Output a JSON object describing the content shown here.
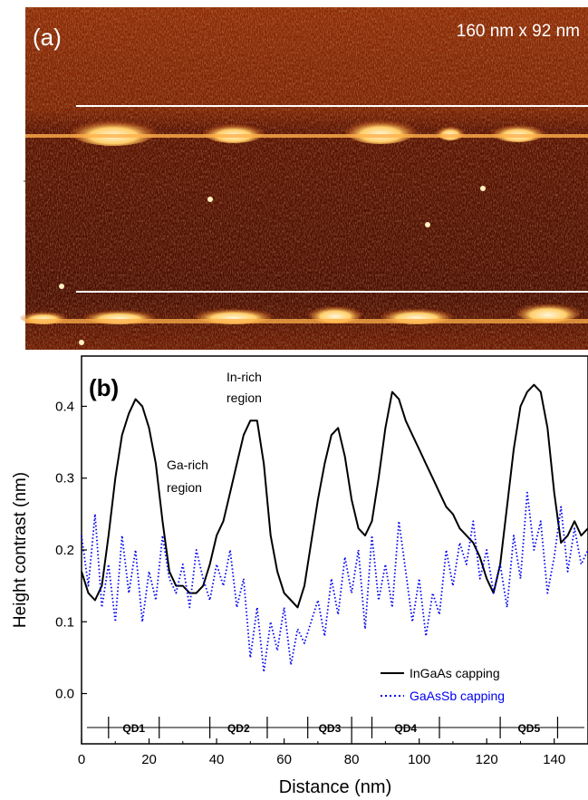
{
  "panel_a": {
    "label": "(a)",
    "scale_text": "160 nm x 92 nm",
    "colors": {
      "background_dark": "#4a0e02",
      "background_mid": "#8c2a06",
      "bright": "#ffd27a",
      "highlight": "#fff3cf",
      "guide_line": "#ffffff"
    }
  },
  "panel_b": {
    "label": "(b)",
    "annotations": {
      "in_rich": [
        "In-rich",
        "region"
      ],
      "ga_rich": [
        "Ga-rich",
        "region"
      ]
    }
  },
  "chart_data": {
    "type": "line",
    "xlabel": "Distance (nm)",
    "ylabel": "Height contrast (nm)",
    "xlim": [
      0,
      150
    ],
    "ylim": [
      -0.07,
      0.47
    ],
    "x_ticks": [
      0,
      20,
      40,
      60,
      80,
      100,
      120,
      140
    ],
    "y_ticks": [
      0.0,
      0.1,
      0.2,
      0.3,
      0.4
    ],
    "y_tick_labels": [
      "0.0",
      "0.1",
      "0.2",
      "0.3",
      "0.4"
    ],
    "legend_position": "bottom-right",
    "series": [
      {
        "name": "InGaAs capping",
        "style": "solid",
        "color": "#000000",
        "x": [
          0,
          2,
          4,
          6,
          8,
          10,
          12,
          14,
          16,
          18,
          20,
          22,
          24,
          26,
          28,
          30,
          32,
          34,
          36,
          38,
          40,
          42,
          44,
          46,
          48,
          50,
          52,
          54,
          56,
          58,
          60,
          62,
          64,
          66,
          68,
          70,
          72,
          74,
          76,
          78,
          80,
          82,
          84,
          86,
          88,
          90,
          92,
          94,
          96,
          98,
          100,
          102,
          104,
          106,
          108,
          110,
          112,
          114,
          116,
          118,
          120,
          122,
          124,
          126,
          128,
          130,
          132,
          134,
          136,
          138,
          140,
          142,
          144,
          146,
          148,
          150
        ],
        "y": [
          0.17,
          0.14,
          0.13,
          0.15,
          0.22,
          0.3,
          0.36,
          0.39,
          0.41,
          0.4,
          0.37,
          0.32,
          0.24,
          0.17,
          0.15,
          0.15,
          0.14,
          0.14,
          0.15,
          0.18,
          0.22,
          0.24,
          0.28,
          0.32,
          0.36,
          0.38,
          0.38,
          0.32,
          0.22,
          0.17,
          0.14,
          0.13,
          0.12,
          0.15,
          0.21,
          0.27,
          0.32,
          0.36,
          0.37,
          0.33,
          0.27,
          0.23,
          0.22,
          0.24,
          0.3,
          0.37,
          0.42,
          0.41,
          0.38,
          0.36,
          0.34,
          0.32,
          0.3,
          0.28,
          0.26,
          0.25,
          0.23,
          0.22,
          0.21,
          0.19,
          0.16,
          0.14,
          0.18,
          0.26,
          0.34,
          0.4,
          0.42,
          0.43,
          0.42,
          0.37,
          0.28,
          0.21,
          0.22,
          0.24,
          0.22,
          0.23
        ]
      },
      {
        "name": "GaAsSb capping",
        "style": "dotted",
        "color": "#0000ee",
        "x": [
          0,
          2,
          4,
          6,
          8,
          10,
          12,
          14,
          16,
          18,
          20,
          22,
          24,
          26,
          28,
          30,
          32,
          34,
          36,
          38,
          40,
          42,
          44,
          46,
          48,
          50,
          52,
          54,
          56,
          58,
          60,
          62,
          64,
          66,
          68,
          70,
          72,
          74,
          76,
          78,
          80,
          82,
          84,
          86,
          88,
          90,
          92,
          94,
          96,
          98,
          100,
          102,
          104,
          106,
          108,
          110,
          112,
          114,
          116,
          118,
          120,
          122,
          124,
          126,
          128,
          130,
          132,
          134,
          136,
          138,
          140,
          142,
          144,
          146,
          148,
          150
        ],
        "y": [
          0.22,
          0.15,
          0.25,
          0.12,
          0.18,
          0.1,
          0.22,
          0.14,
          0.2,
          0.1,
          0.17,
          0.13,
          0.22,
          0.16,
          0.14,
          0.18,
          0.12,
          0.2,
          0.16,
          0.13,
          0.18,
          0.15,
          0.2,
          0.12,
          0.16,
          0.05,
          0.12,
          0.03,
          0.1,
          0.06,
          0.12,
          0.04,
          0.09,
          0.07,
          0.1,
          0.13,
          0.08,
          0.16,
          0.11,
          0.19,
          0.14,
          0.2,
          0.09,
          0.22,
          0.13,
          0.18,
          0.12,
          0.24,
          0.17,
          0.1,
          0.16,
          0.08,
          0.14,
          0.11,
          0.2,
          0.15,
          0.21,
          0.18,
          0.24,
          0.16,
          0.2,
          0.14,
          0.18,
          0.12,
          0.22,
          0.16,
          0.28,
          0.2,
          0.24,
          0.14,
          0.19,
          0.26,
          0.17,
          0.23,
          0.18,
          0.2
        ]
      }
    ],
    "qd_regions": [
      {
        "label": "QD1",
        "start": 8,
        "end": 23
      },
      {
        "label": "QD2",
        "start": 38,
        "end": 55
      },
      {
        "label": "QD3",
        "start": 67,
        "end": 80
      },
      {
        "label": "QD4",
        "start": 86,
        "end": 106
      },
      {
        "label": "QD5",
        "start": 124,
        "end": 141
      }
    ]
  }
}
